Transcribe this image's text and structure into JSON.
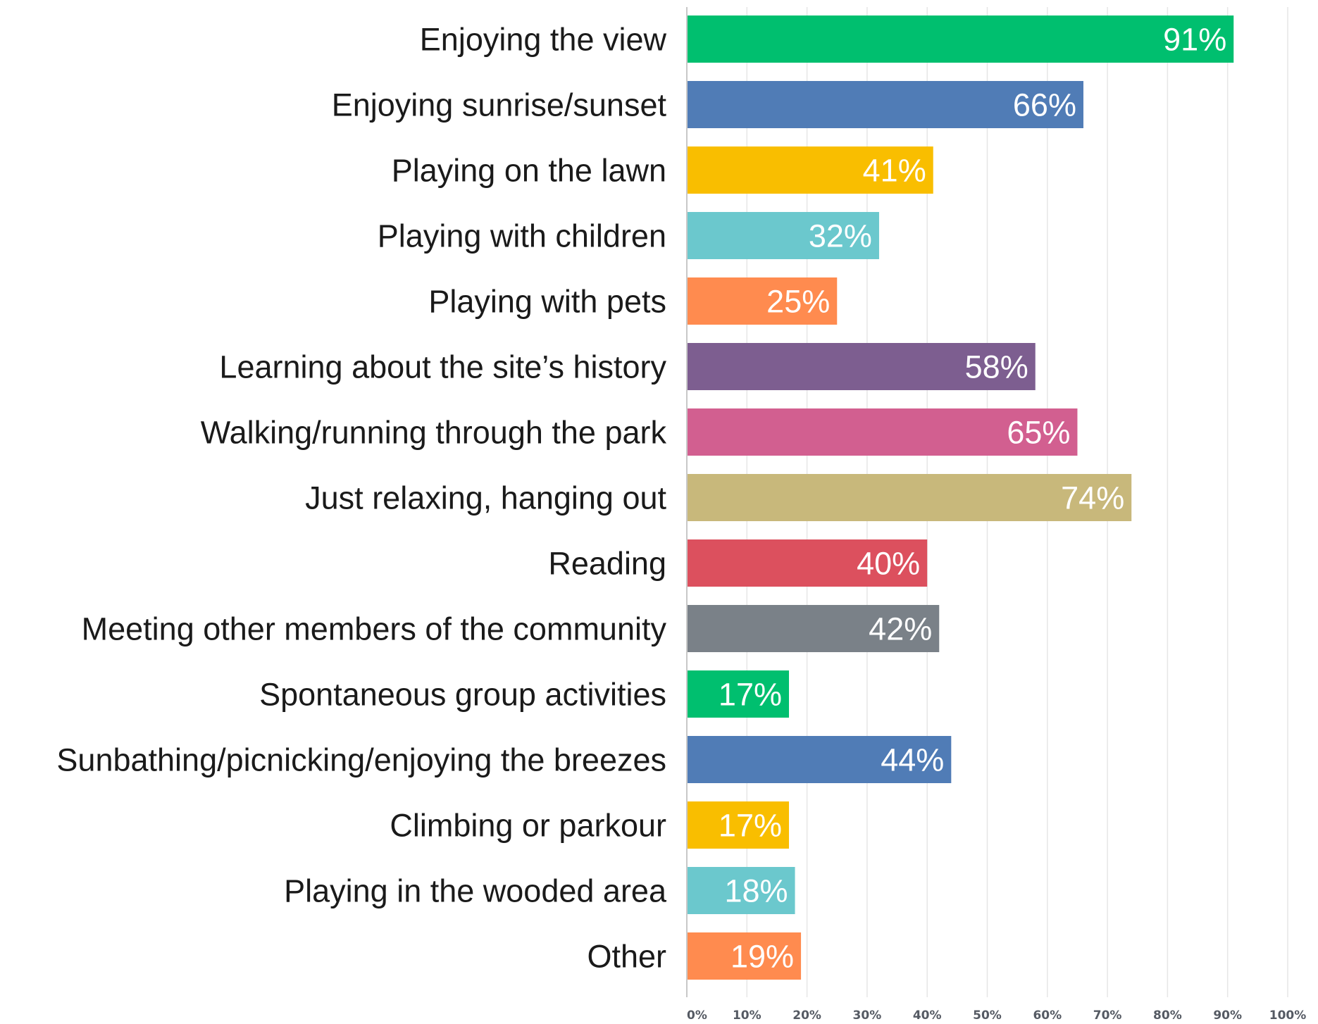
{
  "chart_data": {
    "type": "bar",
    "orientation": "horizontal",
    "title": "",
    "xlabel": "",
    "ylabel": "",
    "categories": [
      "Enjoying the view",
      "Enjoying sunrise/sunset",
      "Playing on the lawn",
      "Playing with children",
      "Playing with pets",
      "Learning about the site’s history",
      "Walking/running through the park",
      "Just relaxing, hanging out",
      "Reading",
      "Meeting other members of the community",
      "Spontaneous group activities",
      "Sunbathing/picnicking/enjoying the breezes",
      "Climbing or parkour",
      "Playing in the wooded area",
      "Other"
    ],
    "values": [
      91,
      66,
      41,
      32,
      25,
      58,
      65,
      74,
      40,
      42,
      17,
      44,
      17,
      18,
      19
    ],
    "value_labels": [
      "91%",
      "66%",
      "41%",
      "32%",
      "25%",
      "58%",
      "65%",
      "74%",
      "40%",
      "42%",
      "17%",
      "44%",
      "17%",
      "18%",
      "19%"
    ],
    "colors": [
      "#00bf6f",
      "#507cb6",
      "#f9be00",
      "#6bc8cd",
      "#ff8b4f",
      "#7d5e90",
      "#d25f90",
      "#c8b87b",
      "#dc505e",
      "#7a8188",
      "#00bf6f",
      "#507cb6",
      "#f9be00",
      "#6bc8cd",
      "#ff8b4f"
    ],
    "xlim": [
      0,
      100
    ],
    "x_ticks": [
      0,
      10,
      20,
      30,
      40,
      50,
      60,
      70,
      80,
      90,
      100
    ],
    "x_tick_labels": [
      "0%",
      "10%",
      "20%",
      "30%",
      "40%",
      "50%",
      "60%",
      "70%",
      "80%",
      "90%",
      "100%"
    ],
    "grid": true,
    "legend": "none"
  }
}
